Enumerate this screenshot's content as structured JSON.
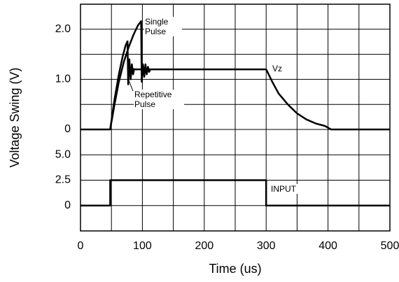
{
  "chart_data": [
    {
      "type": "line",
      "ylabel": "Voltage Swing (V)",
      "xlim": [
        0,
        500
      ],
      "ylim": [
        0,
        2.5
      ],
      "yticks": [
        0,
        {
          "value": 1,
          "label": "1.0"
        },
        {
          "value": 2,
          "label": "2.0"
        }
      ],
      "ygrid": [
        0.5,
        1.5
      ],
      "series": [
        {
          "name": "Single Pulse",
          "color": "#000000",
          "x": [
            0,
            48,
            55,
            62,
            70,
            78,
            86,
            93,
            98,
            99,
            101,
            103,
            105,
            107,
            109,
            111,
            113
          ],
          "values": [
            0,
            0,
            0.5,
            0.95,
            1.35,
            1.65,
            1.9,
            2.08,
            2.16,
            0.95,
            1.3,
            1.05,
            1.3,
            1.1,
            1.25,
            1.15,
            1.2
          ]
        },
        {
          "name": "Repetitive Pulse",
          "color": "#000000",
          "x": [
            48,
            55,
            62,
            68,
            73,
            76,
            77,
            79,
            81,
            83,
            85,
            87
          ],
          "values": [
            0,
            0.6,
            1.1,
            1.45,
            1.68,
            1.76,
            0.9,
            1.4,
            1.0,
            1.3,
            1.1,
            1.22
          ]
        },
        {
          "name": "Vz",
          "color": "#000000",
          "x": [
            87,
            300,
            310,
            320,
            335,
            350,
            365,
            380,
            395,
            405,
            500
          ],
          "values": [
            1.2,
            1.2,
            0.95,
            0.72,
            0.5,
            0.32,
            0.2,
            0.12,
            0.07,
            0,
            0
          ]
        }
      ]
    },
    {
      "type": "line",
      "xlabel": "Time (us)",
      "xlim": [
        0,
        500
      ],
      "ylim": [
        -2.5,
        7.5
      ],
      "xticks": [
        0,
        100,
        200,
        300,
        400,
        500
      ],
      "xgrid": [
        50,
        150,
        250,
        350,
        450
      ],
      "yticks": [
        0,
        2.5,
        {
          "value": 5,
          "label": "5.0"
        }
      ],
      "ygrid": [
        -2.5,
        7.5
      ],
      "series": [
        {
          "name": "INPUT",
          "color": "#000000",
          "x": [
            0,
            48,
            48,
            300,
            300,
            500
          ],
          "values": [
            0,
            0,
            2.5,
            2.5,
            0,
            0
          ]
        }
      ]
    }
  ]
}
